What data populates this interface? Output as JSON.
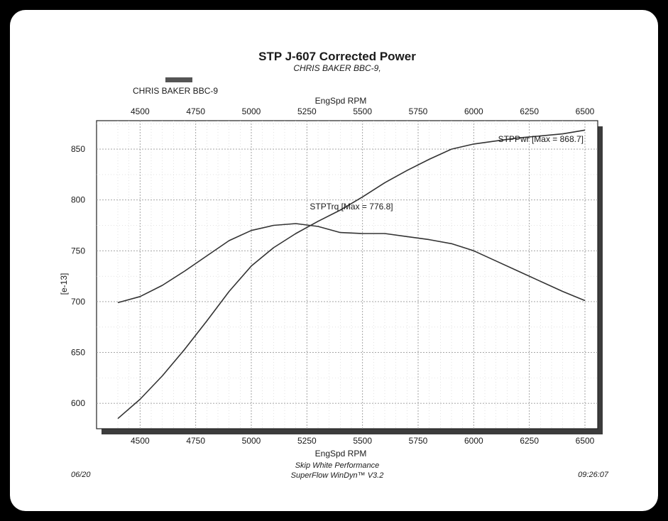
{
  "chart_data": {
    "type": "line",
    "title": "STP J-607 Corrected Power",
    "subtitle": "CHRIS BAKER BBC-9,",
    "legend": {
      "entries": [
        "CHRIS BAKER BBC-9"
      ],
      "placement": "top-left",
      "swatch_color": "#555555"
    },
    "xlabel_top": "EngSpd RPM",
    "xlabel_bottom": "EngSpd RPM",
    "ylabel": "[e-13]",
    "xlim": [
      4400,
      6500
    ],
    "ylim": [
      575,
      878
    ],
    "xticks": [
      4500,
      4750,
      5000,
      5250,
      5500,
      5750,
      6000,
      6250,
      6500
    ],
    "yticks": [
      600,
      650,
      700,
      750,
      800,
      850
    ],
    "grid": true,
    "line_color": "#333333",
    "series": [
      {
        "name": "STPPwr",
        "annotation": "STPPwr [Max = 868.7]",
        "x": [
          4400,
          4500,
          4600,
          4700,
          4800,
          4900,
          5000,
          5100,
          5200,
          5300,
          5400,
          5500,
          5600,
          5700,
          5800,
          5900,
          6000,
          6100,
          6200,
          6300,
          6400,
          6500
        ],
        "values": [
          585,
          604,
          627,
          653,
          681,
          710,
          735,
          753,
          767,
          779,
          790,
          803,
          817,
          829,
          840,
          850,
          855,
          858,
          861,
          863,
          865,
          868.7
        ]
      },
      {
        "name": "STPTrq",
        "annotation": "STPTrq [Max = 776.8]",
        "x": [
          4400,
          4500,
          4600,
          4700,
          4800,
          4900,
          5000,
          5100,
          5200,
          5300,
          5400,
          5500,
          5600,
          5700,
          5800,
          5900,
          6000,
          6100,
          6200,
          6300,
          6400,
          6500
        ],
        "values": [
          699,
          705,
          716,
          730,
          745,
          760,
          770,
          775,
          776.8,
          774,
          768,
          767,
          767,
          764,
          761,
          757,
          750,
          740,
          730,
          720,
          710,
          701
        ]
      }
    ]
  },
  "footer": {
    "left": "06/20",
    "center_line1": "Skip White Performance",
    "center_line2": "SuperFlow WinDyn™ V3.2",
    "right": "09:26:07"
  }
}
